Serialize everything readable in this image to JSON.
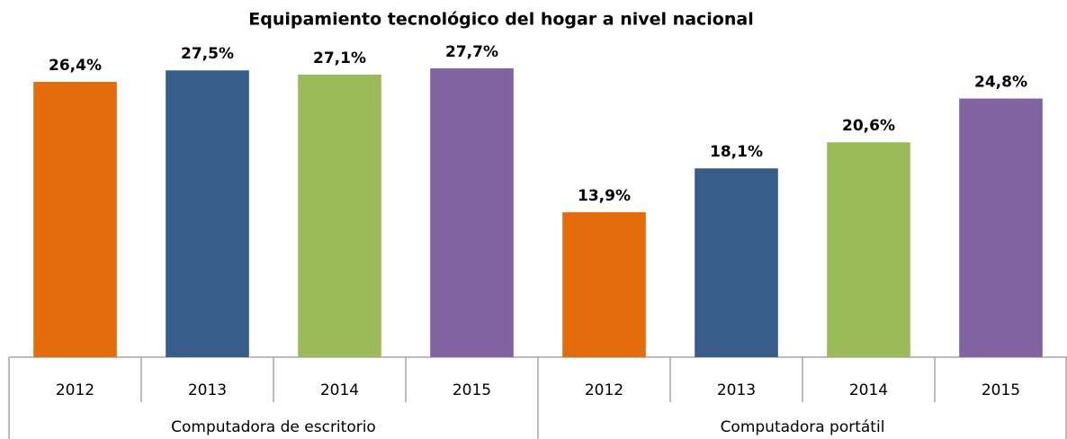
{
  "chart_data": {
    "type": "bar",
    "title": "Equipamiento tecnológico del hogar a nivel nacional",
    "categories": [
      "Computadora de escritorio",
      "Computadora portátil"
    ],
    "series": [
      {
        "name": "2012",
        "color": "#e46c0a",
        "values": [
          26.4,
          13.9
        ],
        "value_labels": [
          "26,4%",
          "13,9%"
        ]
      },
      {
        "name": "2013",
        "color": "#385d8a",
        "values": [
          27.5,
          18.1
        ],
        "value_labels": [
          "27,5%",
          "18,1%"
        ]
      },
      {
        "name": "2014",
        "color": "#9bbb59",
        "values": [
          27.1,
          20.6
        ],
        "value_labels": [
          "27,1%",
          "20,6%"
        ]
      },
      {
        "name": "2015",
        "color": "#8064a2",
        "values": [
          27.7,
          24.8
        ],
        "value_labels": [
          "27,7%",
          "24,8%"
        ]
      }
    ],
    "ylim": [
      0,
      34.25
    ]
  }
}
